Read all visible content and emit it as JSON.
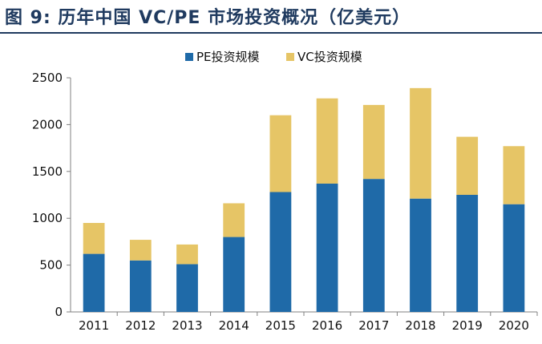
{
  "figure": {
    "title": "图 9:  历年中国 VC/PE 市场投资概况（亿美元）"
  },
  "colors": {
    "title": "#1f3a5f",
    "pe": "#1f6aa8",
    "vc": "#e6c566",
    "axis": "#808080"
  },
  "chart_data": {
    "type": "bar",
    "stacked": true,
    "title": "",
    "xlabel": "",
    "ylabel": "",
    "categories": [
      "2011",
      "2012",
      "2013",
      "2014",
      "2015",
      "2016",
      "2017",
      "2018",
      "2019",
      "2020"
    ],
    "series": [
      {
        "name": "PE投资规模",
        "values": [
          620,
          550,
          510,
          800,
          1280,
          1370,
          1420,
          1210,
          1250,
          1150
        ]
      },
      {
        "name": "VC投资规模",
        "values": [
          330,
          220,
          210,
          360,
          820,
          910,
          790,
          1180,
          620,
          620
        ]
      }
    ],
    "ylim": [
      0,
      2500
    ],
    "yticks": [
      0,
      500,
      1000,
      1500,
      2000,
      2500
    ],
    "legend_position": "top-center",
    "grid": false
  }
}
